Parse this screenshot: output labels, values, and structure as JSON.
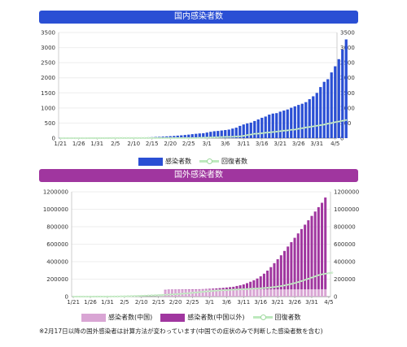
{
  "chart_data": [
    {
      "type": "bar",
      "title": "国内感染者数",
      "x_labels": [
        "1/21",
        "1/26",
        "1/31",
        "2/5",
        "2/10",
        "2/15",
        "2/20",
        "2/25",
        "3/1",
        "3/6",
        "3/11",
        "3/16",
        "3/21",
        "3/26",
        "3/31",
        "4/5"
      ],
      "y_ticks": [
        "3500",
        "3000",
        "2500",
        "2000",
        "1500",
        "1000",
        "500",
        "0"
      ],
      "ylim": [
        0,
        3500
      ],
      "legend_position": "bottom",
      "series": [
        {
          "name": "感染者数",
          "kind": "bar",
          "color": "#2a4fd4",
          "start_date": "1/21",
          "end_date": "4/5",
          "values": [
            1,
            1,
            1,
            1,
            2,
            2,
            3,
            4,
            5,
            7,
            8,
            11,
            14,
            17,
            20,
            20,
            20,
            22,
            23,
            25,
            25,
            25,
            26,
            26,
            29,
            33,
            41,
            45,
            52,
            59,
            66,
            73,
            84,
            93,
            105,
            117,
            132,
            144,
            156,
            164,
            186,
            210,
            230,
            239,
            254,
            268,
            284,
            317,
            348,
            407,
            454,
            488,
            514,
            568,
            620,
            675,
            716,
            780,
            814,
            829,
            878,
            914,
            950,
            1007,
            1054,
            1101,
            1140,
            1193,
            1291,
            1387,
            1499,
            1693,
            1866,
            1953,
            2178,
            2381,
            2617,
            2935,
            3271
          ]
        },
        {
          "name": "回復者数",
          "kind": "line",
          "color": "#bde9bd",
          "start_date": "1/21",
          "end_date": "4/5",
          "values": [
            0,
            0,
            0,
            0,
            0,
            0,
            0,
            0,
            1,
            1,
            1,
            1,
            1,
            1,
            4,
            4,
            4,
            4,
            4,
            4,
            4,
            4,
            4,
            4,
            4,
            4,
            4,
            4,
            4,
            4,
            4,
            4,
            4,
            4,
            4,
            4,
            4,
            4,
            12,
            15,
            18,
            22,
            26,
            30,
            35,
            41,
            43,
            46,
            55,
            60,
            76,
            102,
            120,
            144,
            150,
            164,
            180,
            190,
            204,
            215,
            232,
            247,
            257,
            276,
            285,
            310,
            330,
            355,
            370,
            390,
            410,
            430,
            450,
            480,
            500,
            530,
            550,
            575,
            600
          ]
        }
      ]
    },
    {
      "type": "bar",
      "title": "国外感染者数",
      "x_labels": [
        "1/21",
        "1/26",
        "1/31",
        "2/5",
        "2/10",
        "2/15",
        "2/20",
        "2/25",
        "3/1",
        "3/6",
        "3/11",
        "3/16",
        "3/21",
        "3/26",
        "3/31",
        "4/5"
      ],
      "y_ticks": [
        "1200000",
        "1000000",
        "800000",
        "600000",
        "400000",
        "200000",
        "0"
      ],
      "ylim": [
        0,
        1200000
      ],
      "stacked": true,
      "legend_position": "bottom",
      "series": [
        {
          "name": "感染者数(中国)",
          "kind": "bar",
          "color": "#d9a5d4",
          "start_date": "2/17",
          "end_date": "4/5",
          "values": [
            72400,
            74200,
            75100,
            76000,
            76900,
            77700,
            78100,
            78500,
            78900,
            79400,
            80000,
            80400,
            80700,
            80900,
            81100,
            81200,
            81300,
            81400,
            81500,
            81500,
            81600,
            81700,
            81800,
            81900,
            82000,
            82100,
            82200,
            82300,
            82400,
            82500,
            82600,
            82700,
            82800,
            82900,
            83000,
            83100,
            83200,
            83300,
            83400,
            83500,
            83600,
            83700,
            83800,
            83900,
            84000,
            84100,
            84200,
            84300
          ]
        },
        {
          "name": "感染者数(中国以外)",
          "kind": "bar",
          "color": "#a0369f",
          "start_date": "2/17",
          "end_date": "4/5",
          "values": [
            900,
            1000,
            1100,
            1200,
            1400,
            1700,
            2100,
            2500,
            2800,
            3400,
            4100,
            5200,
            6700,
            8500,
            10600,
            13200,
            16000,
            19000,
            23000,
            27000,
            31000,
            40000,
            48000,
            58000,
            72000,
            88000,
            105000,
            125000,
            150000,
            180000,
            215000,
            255000,
            300000,
            345000,
            390000,
            440000,
            490000,
            540000,
            590000,
            640000,
            690000,
            740000,
            790000,
            840000,
            890000,
            940000,
            990000,
            1050000
          ]
        },
        {
          "name": "回復者数",
          "kind": "line",
          "color": "#bde9bd",
          "start_date": "1/21",
          "end_date": "4/5",
          "values": [
            0,
            0,
            0,
            0,
            0,
            100,
            200,
            300,
            400,
            600,
            900,
            1200,
            1500,
            2000,
            2600,
            3300,
            4100,
            5000,
            6000,
            7500,
            9000,
            10500,
            12000,
            13500,
            15000,
            17000,
            19000,
            21000,
            23000,
            25000,
            27500,
            30000,
            33000,
            36000,
            39500,
            43000,
            47000,
            51000,
            55000,
            59000,
            62000,
            65000,
            68000,
            71000,
            73000,
            75000,
            77000,
            79000,
            81000,
            83000,
            85000,
            87000,
            89000,
            91000,
            93000,
            95000,
            98000,
            101000,
            105000,
            110000,
            115000,
            121000,
            128000,
            136000,
            145000,
            155000,
            166000,
            178000,
            191000,
            204000,
            218000,
            232000,
            246000,
            255000,
            262000,
            268000,
            274000
          ]
        }
      ]
    }
  ],
  "footnote": "※2月17日以降の国外感染者は計算方法が変わっています(中国での症状のみで判断した感染者数を含む)"
}
